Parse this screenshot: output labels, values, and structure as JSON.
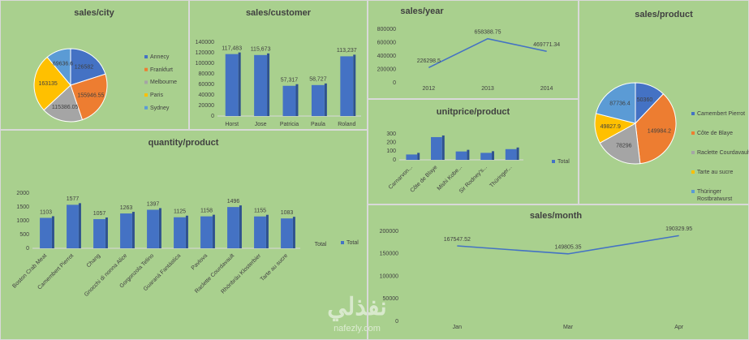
{
  "watermark": [
    "نفذلي",
    "nafezly.com"
  ],
  "chart_data": [
    {
      "type": "pie",
      "title": "sales/city",
      "categories": [
        "Annecy",
        "Frankfurt",
        "Melbourne",
        "Paris",
        "Sydney"
      ],
      "values": [
        126582,
        155946.55,
        115386.05,
        163135,
        69636.6
      ],
      "colors": [
        "#4472c4",
        "#ed7d31",
        "#a5a5a5",
        "#ffc000",
        "#5b9bd5"
      ]
    },
    {
      "type": "bar",
      "title": "sales/customer",
      "categories": [
        "Horst",
        "Jose",
        "Patricia",
        "Paula",
        "Roland"
      ],
      "values": [
        117483,
        115673,
        57317,
        58727,
        113237
      ],
      "value_labels": [
        "117,483",
        "115,673",
        "57,317",
        "58,727",
        "113,237"
      ],
      "color": "#4472c4",
      "data_labels": true,
      "ylim": [
        0,
        140000
      ],
      "yticks": [
        0,
        20000,
        40000,
        60000,
        80000,
        100000,
        120000,
        140000
      ]
    },
    {
      "type": "line",
      "title": "sales/year",
      "categories": [
        "2012",
        "2013",
        "2014"
      ],
      "values": [
        226298.5,
        658388.75,
        469771.34
      ],
      "color": "#4472c4",
      "data_labels": true,
      "ylim": [
        0,
        800000
      ],
      "yticks": [
        0,
        200000,
        400000,
        600000,
        800000
      ]
    },
    {
      "type": "pie",
      "title": "sales/product",
      "categories": [
        "Camembert Pierrot",
        "Côte de Blaye",
        "Raclette Courdavault",
        "Tarte au sucre",
        "Thüringer Rostbratwurst"
      ],
      "values": [
        50360,
        149984.2,
        78296,
        49827.9,
        87736.4
      ],
      "colors": [
        "#4472c4",
        "#ed7d31",
        "#a5a5a5",
        "#ffc000",
        "#5b9bd5"
      ]
    },
    {
      "type": "bar",
      "title": "unitprice/product",
      "categories": [
        "Carnarvon...",
        "Côte de Blaye",
        "Mishi Kobe...",
        "Sir Rodney's...",
        "Thüringer..."
      ],
      "series": [
        {
          "name": "Total",
          "color": "#4472c4",
          "values": [
            62,
            263,
            97,
            81,
            124
          ]
        }
      ],
      "ylim": [
        0,
        300
      ],
      "yticks": [
        0,
        100,
        200,
        300
      ]
    },
    {
      "type": "bar",
      "title": "quantity/product",
      "x_label": "Total",
      "categories": [
        "Boston Crab Meat",
        "Camembert Pierrot",
        "Chang",
        "Gnocchi di nonna Alice",
        "Gorgonzola Telino",
        "Guaraná Fantástica",
        "Pavlova",
        "Raclette Courdavault",
        "Rhönbräu Klosterbier",
        "Tarte au sucre"
      ],
      "series": [
        {
          "name": "Total",
          "color": "#4472c4",
          "values": [
            1103,
            1577,
            1057,
            1263,
            1397,
            1125,
            1158,
            1496,
            1155,
            1083
          ]
        }
      ],
      "data_labels": true,
      "ylim": [
        0,
        2000
      ],
      "yticks": [
        0,
        500,
        1000,
        1500,
        2000
      ]
    },
    {
      "type": "line",
      "title": "sales/month",
      "categories": [
        "Jan",
        "Mar",
        "Apr"
      ],
      "values": [
        167547.52,
        149805.35,
        190329.95
      ],
      "color": "#4472c4",
      "data_labels": true,
      "ylim": [
        0,
        200000
      ],
      "yticks": [
        0,
        50000,
        100000,
        150000,
        200000
      ]
    }
  ]
}
